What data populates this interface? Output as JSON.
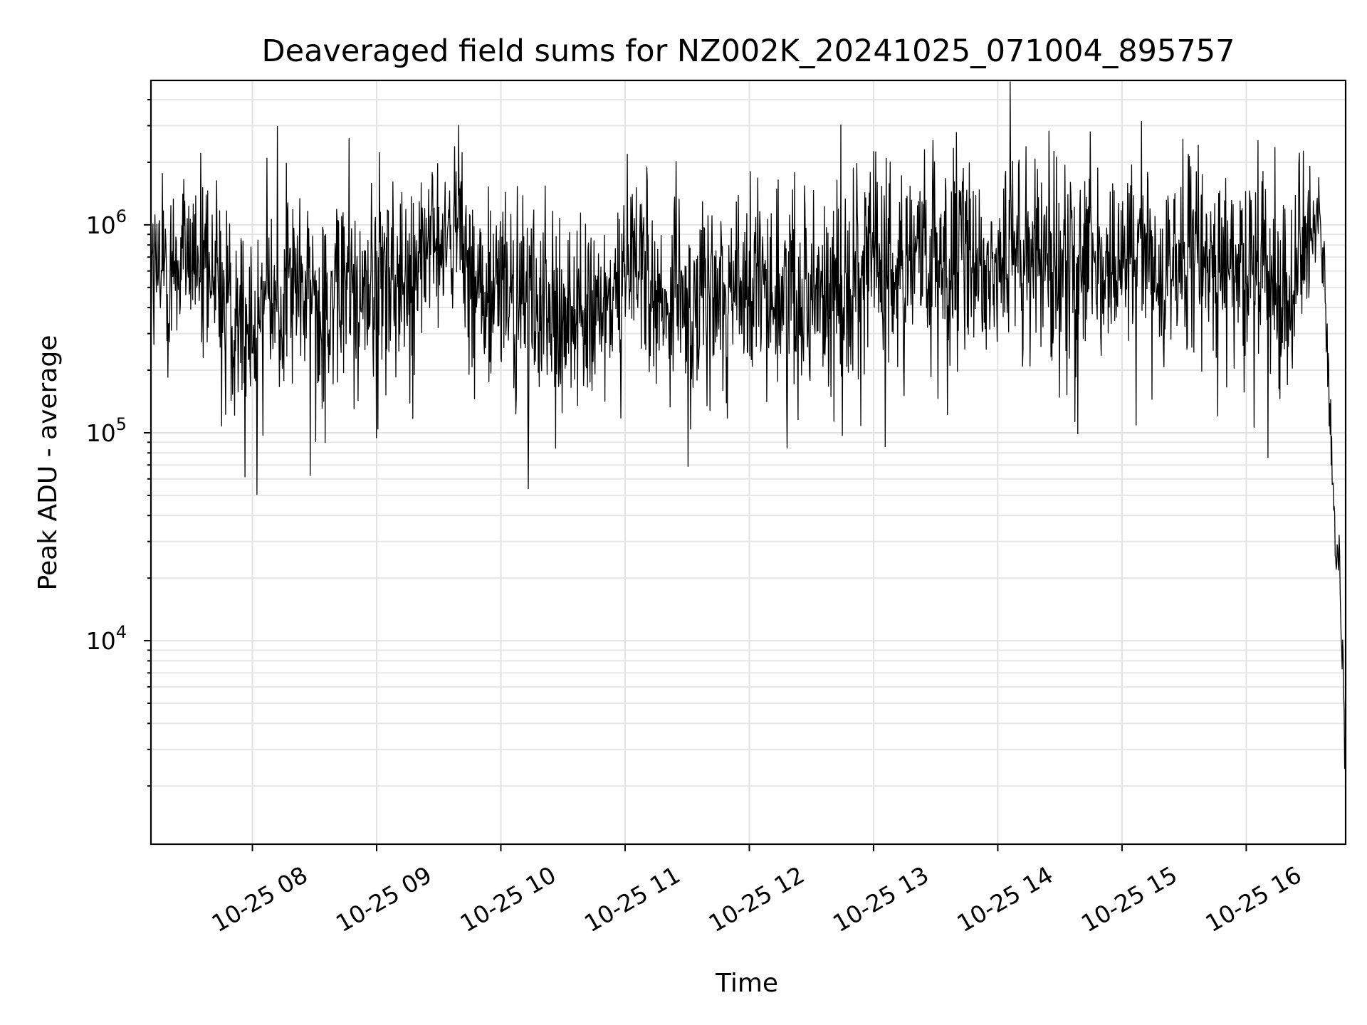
{
  "chart_data": {
    "type": "line",
    "title": "Deaveraged field sums for NZ002K_20241025_071004_895757",
    "xlabel": "Time",
    "ylabel": "Peak ADU - average",
    "yscale": "log",
    "grid": true,
    "line_color": "#000000",
    "xlim": [
      "2024-10-25 07:11",
      "2024-10-25 16:48"
    ],
    "ylim": [
      1050,
      4950000
    ],
    "x_ticks": [
      "10-25 08",
      "10-25 09",
      "10-25 10",
      "10-25 11",
      "10-25 12",
      "10-25 13",
      "10-25 14",
      "10-25 15",
      "10-25 16"
    ],
    "y_ticks": [
      {
        "base": "10",
        "exp": "4",
        "value": 10000
      },
      {
        "base": "10",
        "exp": "5",
        "value": 100000
      },
      {
        "base": "10",
        "exp": "6",
        "value": 1000000
      }
    ],
    "series": [
      {
        "x": [
          "2024-10-25 07:11",
          "2024-10-25 07:20",
          "2024-10-25 07:30",
          "2024-10-25 07:40",
          "2024-10-25 08:00",
          "2024-10-25 08:20",
          "2024-10-25 08:40",
          "2024-10-25 09:00",
          "2024-10-25 09:20",
          "2024-10-25 09:35",
          "2024-10-25 09:50",
          "2024-10-25 10:10",
          "2024-10-25 10:30",
          "2024-10-25 10:50",
          "2024-10-25 11:05",
          "2024-10-25 11:20",
          "2024-10-25 11:40",
          "2024-10-25 12:00",
          "2024-10-25 12:20",
          "2024-10-25 12:40",
          "2024-10-25 13:00",
          "2024-10-25 13:20",
          "2024-10-25 13:40",
          "2024-10-25 14:00",
          "2024-10-25 14:20",
          "2024-10-25 14:40",
          "2024-10-25 15:00",
          "2024-10-25 15:20",
          "2024-10-25 15:40",
          "2024-10-25 16:00",
          "2024-10-25 16:20",
          "2024-10-25 16:30",
          "2024-10-25 16:35",
          "2024-10-25 16:38",
          "2024-10-25 16:40",
          "2024-10-25 16:43",
          "2024-10-25 16:45",
          "2024-10-25 16:47",
          "2024-10-25 16:48"
        ],
        "y": [
          550000,
          600000,
          800000,
          500000,
          350000,
          500000,
          450000,
          500000,
          650000,
          1000000,
          500000,
          400000,
          350000,
          400000,
          700000,
          400000,
          450000,
          500000,
          450000,
          500000,
          700000,
          650000,
          650000,
          700000,
          700000,
          700000,
          650000,
          650000,
          700000,
          600000,
          500000,
          900000,
          1100000,
          500000,
          150000,
          30000,
          20000,
          8000,
          2000
        ]
      }
    ]
  }
}
